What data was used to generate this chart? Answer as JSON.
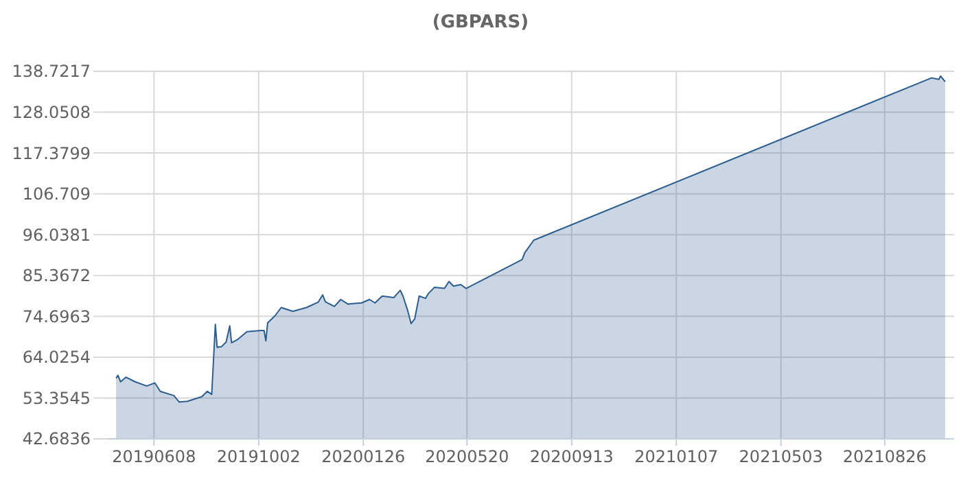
{
  "chart_data": {
    "type": "area",
    "title": "(GBPARS)",
    "x": [
      "2019-04-27",
      "2019-04-29",
      "2019-05-02",
      "2019-05-08",
      "2019-05-18",
      "2019-05-31",
      "2019-06-09",
      "2019-06-15",
      "2019-06-30",
      "2019-07-06",
      "2019-07-15",
      "2019-07-31",
      "2019-08-06",
      "2019-08-11",
      "2019-08-15",
      "2019-08-17",
      "2019-08-22",
      "2019-08-27",
      "2019-08-31",
      "2019-09-02",
      "2019-09-09",
      "2019-09-19",
      "2019-10-04",
      "2019-10-08",
      "2019-10-10",
      "2019-10-12",
      "2019-10-20",
      "2019-10-27",
      "2019-11-09",
      "2019-11-24",
      "2019-12-07",
      "2019-12-12",
      "2019-12-15",
      "2019-12-25",
      "2020-01-01",
      "2020-01-09",
      "2020-01-24",
      "2020-02-02",
      "2020-02-08",
      "2020-02-16",
      "2020-02-29",
      "2020-03-02",
      "2020-03-07",
      "2020-03-10",
      "2020-03-15",
      "2020-03-19",
      "2020-03-23",
      "2020-03-28",
      "2020-04-04",
      "2020-04-07",
      "2020-04-14",
      "2020-04-25",
      "2020-04-30",
      "2020-05-05",
      "2020-05-13",
      "2020-05-19",
      "2020-07-20",
      "2020-07-23",
      "2020-08-02",
      "2021-10-17",
      "2021-10-25",
      "2021-10-27",
      "2021-11-01"
    ],
    "series": [
      {
        "color": "#2b5d8e",
        "values": [
          58.5,
          59.3,
          57.6,
          58.8,
          57.6,
          56.5,
          57.3,
          55.1,
          54.0,
          52.3,
          52.5,
          53.7,
          55.1,
          54.3,
          72.6,
          66.6,
          66.8,
          68.0,
          72.2,
          67.8,
          68.7,
          70.7,
          71.0,
          71.0,
          68.3,
          73.0,
          74.8,
          77.0,
          76.0,
          77.0,
          78.4,
          80.3,
          78.5,
          77.3,
          79.1,
          77.9,
          78.2,
          79.1,
          78.2,
          80.0,
          79.6,
          80.2,
          81.5,
          80.0,
          76.4,
          72.8,
          74.0,
          80.0,
          79.4,
          80.6,
          82.3,
          82.0,
          83.8,
          82.6,
          83.0,
          82.0,
          89.5,
          91.3,
          94.6,
          137.0,
          136.6,
          137.5,
          136.0
        ]
      }
    ],
    "xlim": [
      "2019-04-17",
      "2021-11-11"
    ],
    "xticks": [
      {
        "value": "2019-06-08",
        "label": "20190608"
      },
      {
        "value": "2019-10-02",
        "label": "20191002"
      },
      {
        "value": "2020-01-26",
        "label": "20200126"
      },
      {
        "value": "2020-05-20",
        "label": "20200520"
      },
      {
        "value": "2020-09-13",
        "label": "20200913"
      },
      {
        "value": "2021-01-07",
        "label": "20210107"
      },
      {
        "value": "2021-05-03",
        "label": "20210503"
      },
      {
        "value": "2021-08-26",
        "label": "20210826"
      }
    ],
    "ylim": [
      42.6836,
      138.7217
    ],
    "yticks": [
      42.6836,
      53.3545,
      64.0254,
      74.6963,
      85.3672,
      96.0381,
      106.709,
      117.3799,
      128.0508,
      138.7217
    ],
    "grid": true
  }
}
